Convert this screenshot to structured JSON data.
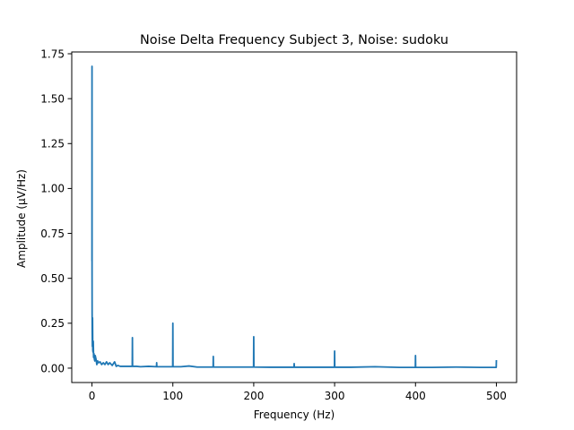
{
  "chart_data": {
    "type": "line",
    "title": "Noise Delta Frequency Subject 3, Noise: sudoku",
    "xlabel": "Frequency (Hz)",
    "ylabel": "Amplitude (μV/Hz)",
    "xlim": [
      -25,
      525
    ],
    "ylim": [
      -0.08,
      1.76
    ],
    "xticks": [
      0,
      100,
      200,
      300,
      400,
      500
    ],
    "xtick_labels": [
      "0",
      "100",
      "200",
      "300",
      "400",
      "500"
    ],
    "yticks": [
      0.0,
      0.25,
      0.5,
      0.75,
      1.0,
      1.25,
      1.5,
      1.75
    ],
    "ytick_labels": [
      "0.00",
      "0.25",
      "0.50",
      "0.75",
      "1.00",
      "1.25",
      "1.50",
      "1.75"
    ],
    "grid": false,
    "legend": "none",
    "series": [
      {
        "color": "#1f77b4",
        "x": [
          0,
          0.05,
          0.1,
          0.2,
          0.3,
          0.5,
          0.7,
          1,
          1.3,
          1.6,
          2,
          2.5,
          3,
          3.5,
          4,
          5,
          6,
          7,
          8,
          10,
          12,
          14,
          16,
          18,
          20,
          22,
          25,
          28,
          30,
          32,
          35,
          40,
          45,
          49.8,
          50,
          50.2,
          55,
          60,
          70,
          79.8,
          80,
          80.2,
          90,
          99.8,
          100,
          100.2,
          110,
          120,
          130,
          140,
          149.8,
          150,
          150.2,
          160,
          180,
          199.8,
          200,
          200.2,
          220,
          249.8,
          250,
          250.2,
          270,
          299.8,
          300,
          300.2,
          320,
          350,
          380,
          399.8,
          400,
          400.2,
          420,
          450,
          480,
          498,
          499.8,
          500
        ],
        "y": [
          0.6,
          1.68,
          0.55,
          0.3,
          0.2,
          0.12,
          0.28,
          0.1,
          0.09,
          0.15,
          0.06,
          0.08,
          0.05,
          0.04,
          0.07,
          0.05,
          0.02,
          0.04,
          0.03,
          0.035,
          0.02,
          0.03,
          0.02,
          0.035,
          0.02,
          0.03,
          0.015,
          0.035,
          0.01,
          0.015,
          0.01,
          0.01,
          0.01,
          0.01,
          0.17,
          0.01,
          0.01,
          0.008,
          0.01,
          0.008,
          0.03,
          0.008,
          0.008,
          0.008,
          0.25,
          0.008,
          0.008,
          0.012,
          0.006,
          0.006,
          0.006,
          0.065,
          0.006,
          0.006,
          0.006,
          0.006,
          0.175,
          0.006,
          0.005,
          0.005,
          0.025,
          0.005,
          0.005,
          0.005,
          0.095,
          0.005,
          0.005,
          0.008,
          0.004,
          0.004,
          0.07,
          0.004,
          0.004,
          0.006,
          0.004,
          0.004,
          0.004,
          0.04
        ]
      }
    ]
  }
}
